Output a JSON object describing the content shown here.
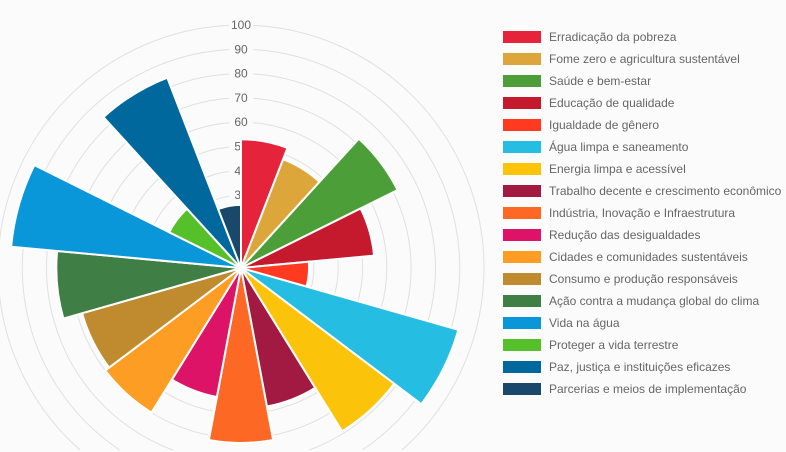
{
  "chart_data": {
    "type": "polarArea",
    "title": "",
    "categories": [
      "Erradicação da pobreza",
      "Fome zero e agricultura sustentável",
      "Saúde e bem-estar",
      "Educação de qualidade",
      "Igualdade de gênero",
      "Água limpa e saneamento",
      "Energia limpa e acessível",
      "Trabalho decente e crescimento econômico",
      "Indústria, Inovação e Infraestrutura",
      "Redução das desigualdades",
      "Cidades e comunidades sustentáveis",
      "Consumo e produção responsáveis",
      "Ação contra a mudança global do clima",
      "Vida na água",
      "Proteger a vida terrestre",
      "Paz, justiça e instituições eficazes",
      "Parcerias e meios de implementação"
    ],
    "values": [
      53,
      48,
      72,
      55,
      28,
      93,
      79,
      58,
      72,
      54,
      70,
      68,
      76,
      95,
      33,
      84,
      26
    ],
    "colors": [
      "#e5243b",
      "#dda63a",
      "#4c9f38",
      "#c5192d",
      "#ff3a21",
      "#26bde2",
      "#fcc30b",
      "#a21942",
      "#fd6925",
      "#dd1367",
      "#fd9d24",
      "#bf8b2e",
      "#3f7e44",
      "#0a97d9",
      "#56c02b",
      "#00689d",
      "#19486a"
    ],
    "r_ticks": [
      "10",
      "20",
      "30",
      "40",
      "50",
      "60",
      "70",
      "80",
      "90",
      "100"
    ],
    "rlim": [
      0,
      100
    ],
    "grid": true,
    "legend_position": "right"
  }
}
